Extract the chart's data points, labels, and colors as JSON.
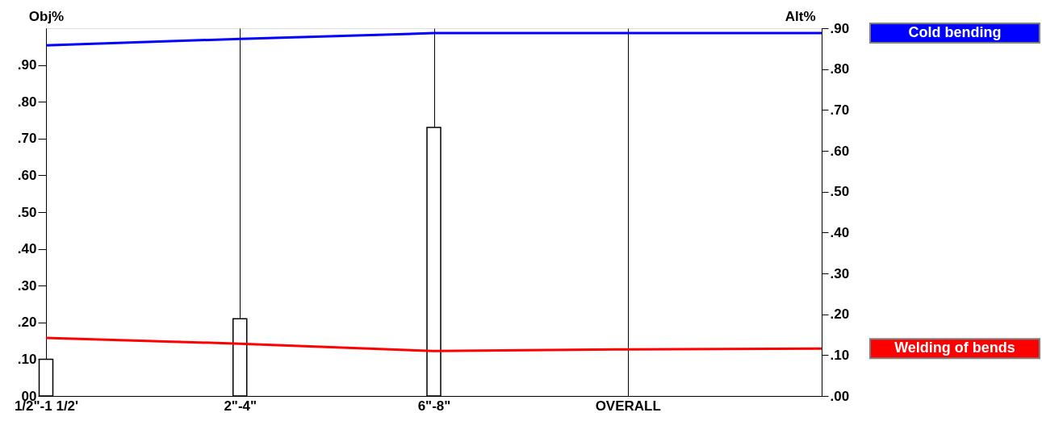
{
  "chart_data": {
    "type": "bar",
    "categories": [
      "1/2\"-1 1/2'",
      "2\"-4\"",
      "6\"-8\"",
      "OVERALL",
      null
    ],
    "series": [
      {
        "color": "#ffffff",
        "values": [
          0.1,
          0.21,
          0.73,
          null,
          null
        ]
      },
      {
        "type": "line",
        "axis": "y2",
        "name": "Cold bending",
        "color": "#0000ff",
        "values": [
          0.858,
          0.874,
          0.888,
          0.888,
          0.888
        ]
      },
      {
        "type": "line",
        "axis": "y2",
        "name": "Welding of bends",
        "color": "#ff0000",
        "values": [
          0.142,
          0.128,
          0.11,
          0.114,
          0.116
        ]
      }
    ],
    "ylabel": "Obj%",
    "y2label": "Alt%",
    "ylim": [
      0,
      1.0
    ],
    "yticks": [
      {
        "value": 0,
        "label": "00"
      },
      {
        "value": 0.1,
        "label": ".10"
      },
      {
        "value": 0.2,
        "label": ".20"
      },
      {
        "value": 0.3,
        "label": ".30"
      },
      {
        "value": 0.4,
        "label": ".40"
      },
      {
        "value": 0.5,
        "label": ".50"
      },
      {
        "value": 0.6,
        "label": ".60"
      },
      {
        "value": 0.7,
        "label": ".70"
      },
      {
        "value": 0.8,
        "label": ".80"
      },
      {
        "value": 0.9,
        "label": ".90"
      }
    ],
    "y2lim": [
      0,
      0.9
    ],
    "y2ticks": [
      {
        "value": 0,
        "label": ".00"
      },
      {
        "value": 0.1,
        "label": ".10"
      },
      {
        "value": 0.2,
        "label": ".20"
      },
      {
        "value": 0.3,
        "label": ".30"
      },
      {
        "value": 0.4,
        "label": ".40"
      },
      {
        "value": 0.5,
        "label": ".50"
      },
      {
        "value": 0.6,
        "label": ".60"
      },
      {
        "value": 0.7,
        "label": ".70"
      },
      {
        "value": 0.8,
        "label": ".80"
      },
      {
        "value": 0.9,
        "label": ".90"
      }
    ],
    "grid": "x"
  }
}
